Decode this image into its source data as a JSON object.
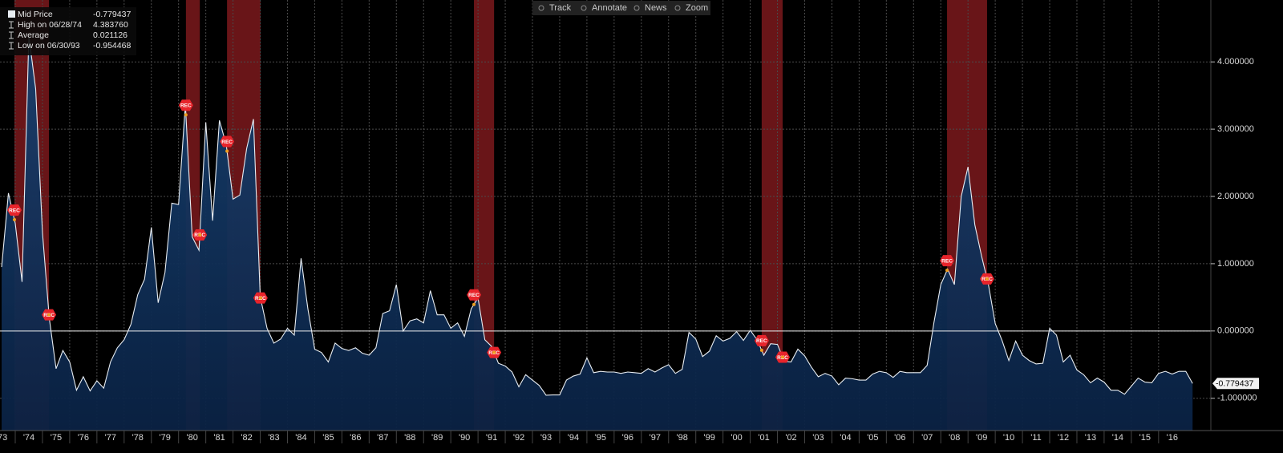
{
  "toolbar": [
    "Track",
    "Annotate",
    "News",
    "Zoom"
  ],
  "chart_data": {
    "type": "area",
    "legend": [
      {
        "label": "Mid Price",
        "value": {
          "value": -0.779437,
          "label": "-0.779437"
        }
      },
      {
        "label": "High on 06/28/74",
        "value": {
          "value": 4.38376,
          "label": "4.383760"
        }
      },
      {
        "label": "Average",
        "value": {
          "value": 0.021126,
          "label": "0.021126"
        }
      },
      {
        "label": "Low on 06/30/93",
        "value": {
          "value": -0.954468,
          "label": "-0.954468"
        }
      }
    ],
    "x": [
      1973.5,
      1973.75,
      1974,
      1974.25,
      1974.5,
      1974.75,
      1975,
      1975.25,
      1975.5,
      1975.75,
      1976,
      1976.25,
      1976.5,
      1976.75,
      1977,
      1977.25,
      1977.5,
      1977.75,
      1978,
      1978.25,
      1978.5,
      1978.75,
      1979,
      1979.25,
      1979.5,
      1979.75,
      1980,
      1980.25,
      1980.5,
      1980.75,
      1981,
      1981.25,
      1981.5,
      1981.75,
      1982,
      1982.25,
      1982.5,
      1982.75,
      1983,
      1983.25,
      1983.5,
      1983.75,
      1984,
      1984.25,
      1984.5,
      1984.75,
      1985,
      1985.25,
      1985.5,
      1985.75,
      1986,
      1986.25,
      1986.5,
      1986.75,
      1987,
      1987.25,
      1987.5,
      1987.75,
      1988,
      1988.25,
      1988.5,
      1988.75,
      1989,
      1989.25,
      1989.5,
      1989.75,
      1990,
      1990.25,
      1990.5,
      1990.75,
      1991,
      1991.25,
      1991.5,
      1991.75,
      1992,
      1992.25,
      1992.5,
      1992.75,
      1993,
      1993.25,
      1993.5,
      1993.75,
      1994,
      1994.25,
      1994.5,
      1994.75,
      1995,
      1995.25,
      1995.5,
      1995.75,
      1996,
      1996.25,
      1996.5,
      1996.75,
      1997,
      1997.25,
      1997.5,
      1997.75,
      1998,
      1998.25,
      1998.5,
      1998.75,
      1999,
      1999.25,
      1999.5,
      1999.75,
      2000,
      2000.25,
      2000.5,
      2000.75,
      2001,
      2001.25,
      2001.5,
      2001.75,
      2002,
      2002.25,
      2002.5,
      2002.75,
      2003,
      2003.25,
      2003.5,
      2003.75,
      2004,
      2004.25,
      2004.5,
      2004.75,
      2005,
      2005.25,
      2005.5,
      2005.75,
      2006,
      2006.25,
      2006.5,
      2006.75,
      2007,
      2007.25,
      2007.5,
      2007.75,
      2008,
      2008.25,
      2008.5,
      2008.75,
      2009,
      2009.25,
      2009.5,
      2009.75,
      2010,
      2010.25,
      2010.5,
      2010.75,
      2011,
      2011.25,
      2011.5,
      2011.75,
      2012,
      2012.25,
      2012.5,
      2012.75,
      2013,
      2013.25,
      2013.5,
      2013.75,
      2014,
      2014.25,
      2014.5,
      2014.75,
      2015,
      2015.25,
      2015.5,
      2015.75,
      2016,
      2016.25,
      2016.5,
      2016.75,
      2017,
      2017.25
    ],
    "series": [
      {
        "name": "Mid Price",
        "color": "#e8edf2",
        "fill": "#0c2a52",
        "values": [
          0.95,
          2.05,
          1.6,
          0.73,
          4.38376,
          3.6,
          1.46,
          0.19,
          -0.56,
          -0.29,
          -0.46,
          -0.88,
          -0.68,
          -0.89,
          -0.74,
          -0.85,
          -0.46,
          -0.25,
          -0.13,
          0.1,
          0.54,
          0.77,
          1.54,
          0.42,
          0.87,
          1.9,
          1.88,
          3.37,
          1.4,
          1.2,
          3.1,
          1.64,
          3.13,
          2.77,
          1.96,
          2.02,
          2.71,
          3.15,
          0.51,
          0.04,
          -0.18,
          -0.12,
          0.04,
          -0.06,
          1.08,
          0.33,
          -0.27,
          -0.32,
          -0.46,
          -0.18,
          -0.26,
          -0.29,
          -0.25,
          -0.33,
          -0.36,
          -0.25,
          0.26,
          0.3,
          0.69,
          0,
          0.15,
          0.18,
          0.12,
          0.6,
          0.24,
          0.24,
          0.04,
          0.12,
          -0.08,
          0.33,
          0.49,
          -0.13,
          -0.23,
          -0.48,
          -0.52,
          -0.61,
          -0.83,
          -0.65,
          -0.73,
          -0.81,
          -0.954468,
          -0.95,
          -0.95,
          -0.73,
          -0.67,
          -0.64,
          -0.4,
          -0.62,
          -0.6,
          -0.61,
          -0.61,
          -0.63,
          -0.61,
          -0.62,
          -0.63,
          -0.56,
          -0.61,
          -0.55,
          -0.5,
          -0.63,
          -0.57,
          -0.02,
          -0.12,
          -0.38,
          -0.3,
          -0.07,
          -0.15,
          -0.11,
          -0.01,
          -0.14,
          0.01,
          -0.13,
          -0.36,
          -0.19,
          -0.2,
          -0.45,
          -0.46,
          -0.27,
          -0.37,
          -0.54,
          -0.68,
          -0.63,
          -0.67,
          -0.8,
          -0.7,
          -0.71,
          -0.73,
          -0.73,
          -0.64,
          -0.6,
          -0.62,
          -0.69,
          -0.6,
          -0.62,
          -0.62,
          -0.62,
          -0.51,
          0.13,
          0.69,
          0.92,
          0.69,
          2.0,
          2.44,
          1.58,
          1.11,
          0.69,
          0.11,
          -0.14,
          -0.44,
          -0.15,
          -0.36,
          -0.44,
          -0.49,
          -0.48,
          0.04,
          -0.06,
          -0.46,
          -0.36,
          -0.58,
          -0.65,
          -0.77,
          -0.7,
          -0.76,
          -0.88,
          -0.88,
          -0.94,
          -0.82,
          -0.7,
          -0.76,
          -0.77,
          -0.63,
          -0.6,
          -0.64,
          -0.6,
          -0.6,
          -0.779437
        ]
      }
    ],
    "recessions": [
      {
        "start": 1973.97,
        "end": 1975.24,
        "label": "REC"
      },
      {
        "start": 1980.27,
        "end": 1980.78,
        "label": "REC"
      },
      {
        "start": 1981.78,
        "end": 1983.01,
        "label": "REC"
      },
      {
        "start": 1990.85,
        "end": 1991.59,
        "label": "REC"
      },
      {
        "start": 2001.42,
        "end": 2002.19,
        "label": "REC"
      },
      {
        "start": 2008.23,
        "end": 2009.7,
        "label": "REC"
      }
    ],
    "recession_color": "#c0262b",
    "xlim": [
      1973.44,
      2017.92
    ],
    "xticks": [
      {
        "value": 1973,
        "label": "'73"
      },
      {
        "value": 1974,
        "label": "'74"
      },
      {
        "value": 1975,
        "label": "'75"
      },
      {
        "value": 1976,
        "label": "'76"
      },
      {
        "value": 1977,
        "label": "'77"
      },
      {
        "value": 1978,
        "label": "'78"
      },
      {
        "value": 1979,
        "label": "'79"
      },
      {
        "value": 1980,
        "label": "'80"
      },
      {
        "value": 1981,
        "label": "'81"
      },
      {
        "value": 1982,
        "label": "'82"
      },
      {
        "value": 1983,
        "label": "'83"
      },
      {
        "value": 1984,
        "label": "'84"
      },
      {
        "value": 1985,
        "label": "'85"
      },
      {
        "value": 1986,
        "label": "'86"
      },
      {
        "value": 1987,
        "label": "'87"
      },
      {
        "value": 1988,
        "label": "'88"
      },
      {
        "value": 1989,
        "label": "'89"
      },
      {
        "value": 1990,
        "label": "'90"
      },
      {
        "value": 1991,
        "label": "'91"
      },
      {
        "value": 1992,
        "label": "'92"
      },
      {
        "value": 1993,
        "label": "'93"
      },
      {
        "value": 1994,
        "label": "'94"
      },
      {
        "value": 1995,
        "label": "'95"
      },
      {
        "value": 1996,
        "label": "'96"
      },
      {
        "value": 1997,
        "label": "'97"
      },
      {
        "value": 1998,
        "label": "'98"
      },
      {
        "value": 1999,
        "label": "'99"
      },
      {
        "value": 2000,
        "label": "'00"
      },
      {
        "value": 2001,
        "label": "'01"
      },
      {
        "value": 2002,
        "label": "'02"
      },
      {
        "value": 2003,
        "label": "'03"
      },
      {
        "value": 2004,
        "label": "'04"
      },
      {
        "value": 2005,
        "label": "'05"
      },
      {
        "value": 2006,
        "label": "'06"
      },
      {
        "value": 2007,
        "label": "'07"
      },
      {
        "value": 2008,
        "label": "'08"
      },
      {
        "value": 2009,
        "label": "'09"
      },
      {
        "value": 2010,
        "label": "'10"
      },
      {
        "value": 2011,
        "label": "'11"
      },
      {
        "value": 2012,
        "label": "'12"
      },
      {
        "value": 2013,
        "label": "'13"
      },
      {
        "value": 2014,
        "label": "'14"
      },
      {
        "value": 2015,
        "label": "'15"
      },
      {
        "value": 2016,
        "label": "'16"
      }
    ],
    "ylim": [
      -1.48,
      4.92
    ],
    "yticks": [
      {
        "value": -1,
        "label": "-1.000000"
      },
      {
        "value": 0,
        "label": "0.000000"
      },
      {
        "value": 1,
        "label": "1.000000"
      },
      {
        "value": 2,
        "label": "2.000000"
      },
      {
        "value": 3,
        "label": "3.000000"
      },
      {
        "value": 4,
        "label": "4.000000"
      }
    ],
    "grid": true
  }
}
